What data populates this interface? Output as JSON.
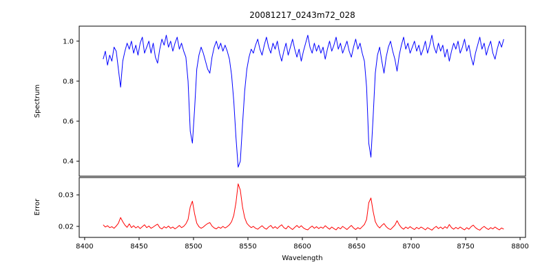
{
  "chart_data": {
    "type": "line",
    "title": "20081217_0243m72_028",
    "xlabel": "Wavelength",
    "grid": false,
    "legend": "none",
    "x_start": 8417,
    "x_step": 2,
    "xlim": [
      8395,
      8805
    ],
    "x_ticks": [
      8400,
      8450,
      8500,
      8550,
      8600,
      8650,
      8700,
      8750,
      8800
    ],
    "x_tick_labels": [
      "8400",
      "8450",
      "8500",
      "8550",
      "8600",
      "8650",
      "8700",
      "8750",
      "8800"
    ],
    "panels": [
      {
        "name": "spectrum",
        "ylabel": "Spectrum",
        "color": "#0000ff",
        "ylim": [
          0.325,
          1.075
        ],
        "y_ticks": [
          0.4,
          0.6,
          0.8,
          1.0
        ],
        "y_tick_labels": [
          "0.4",
          "0.6",
          "0.8",
          "1.0"
        ],
        "values": [
          0.91,
          0.95,
          0.88,
          0.93,
          0.9,
          0.97,
          0.95,
          0.86,
          0.77,
          0.9,
          0.95,
          0.99,
          0.96,
          1.0,
          0.94,
          0.98,
          0.93,
          0.99,
          1.02,
          0.94,
          0.97,
          1.0,
          0.94,
          0.99,
          0.92,
          0.89,
          0.96,
          1.01,
          0.98,
          1.03,
          0.97,
          1.0,
          0.95,
          0.99,
          1.02,
          0.96,
          0.99,
          0.95,
          0.92,
          0.8,
          0.55,
          0.49,
          0.66,
          0.86,
          0.93,
          0.97,
          0.94,
          0.9,
          0.86,
          0.84,
          0.92,
          0.97,
          1.0,
          0.96,
          0.99,
          0.95,
          0.98,
          0.95,
          0.91,
          0.83,
          0.7,
          0.52,
          0.37,
          0.4,
          0.58,
          0.75,
          0.86,
          0.92,
          0.96,
          0.94,
          0.98,
          1.01,
          0.96,
          0.93,
          0.98,
          1.02,
          0.97,
          0.94,
          0.99,
          0.96,
          1.0,
          0.94,
          0.9,
          0.95,
          0.99,
          0.93,
          0.97,
          1.01,
          0.96,
          0.92,
          0.96,
          0.9,
          0.95,
          0.99,
          1.03,
          0.97,
          0.94,
          0.99,
          0.95,
          0.98,
          0.94,
          0.97,
          0.91,
          0.96,
          1.0,
          0.95,
          0.98,
          1.02,
          0.96,
          0.99,
          0.94,
          0.97,
          1.0,
          0.95,
          0.92,
          0.97,
          1.01,
          0.96,
          0.99,
          0.94,
          0.9,
          0.77,
          0.49,
          0.42,
          0.62,
          0.84,
          0.93,
          0.97,
          0.9,
          0.84,
          0.92,
          0.97,
          1.0,
          0.95,
          0.91,
          0.85,
          0.93,
          0.98,
          1.02,
          0.96,
          0.99,
          0.94,
          0.97,
          1.0,
          0.95,
          0.98,
          0.93,
          0.96,
          1.0,
          0.94,
          0.98,
          1.03,
          0.97,
          0.94,
          0.99,
          0.95,
          0.98,
          0.92,
          0.96,
          0.9,
          0.95,
          0.99,
          0.96,
          1.0,
          0.94,
          0.97,
          1.01,
          0.95,
          0.98,
          0.92,
          0.88,
          0.94,
          0.98,
          1.02,
          0.96,
          0.99,
          0.93,
          0.97,
          1.0,
          0.94,
          0.91,
          0.96,
          1.0,
          0.97,
          1.01
        ]
      },
      {
        "name": "error",
        "ylabel": "Error",
        "color": "#ff0000",
        "ylim": [
          0.0165,
          0.0355
        ],
        "y_ticks": [
          0.02,
          0.03
        ],
        "y_tick_labels": [
          "0.02",
          "0.03"
        ],
        "values": [
          0.0205,
          0.0198,
          0.0202,
          0.0196,
          0.0199,
          0.0194,
          0.0201,
          0.021,
          0.0228,
          0.0215,
          0.0204,
          0.0197,
          0.0208,
          0.0196,
          0.0202,
          0.0195,
          0.02,
          0.0193,
          0.0199,
          0.0205,
          0.0196,
          0.0201,
          0.0194,
          0.0198,
          0.0203,
          0.0207,
          0.0196,
          0.0192,
          0.0199,
          0.0195,
          0.0201,
          0.0194,
          0.0198,
          0.0192,
          0.0197,
          0.0203,
          0.0196,
          0.02,
          0.0208,
          0.0222,
          0.0262,
          0.028,
          0.024,
          0.021,
          0.0199,
          0.0194,
          0.0198,
          0.0204,
          0.0209,
          0.0212,
          0.0201,
          0.0195,
          0.0192,
          0.0198,
          0.0194,
          0.02,
          0.0195,
          0.0199,
          0.0205,
          0.0215,
          0.0235,
          0.0275,
          0.0335,
          0.0315,
          0.0262,
          0.0228,
          0.021,
          0.0202,
          0.0196,
          0.02,
          0.0194,
          0.0191,
          0.0197,
          0.0202,
          0.0195,
          0.0191,
          0.0198,
          0.0203,
          0.0194,
          0.0199,
          0.0193,
          0.02,
          0.0205,
          0.0196,
          0.0192,
          0.0201,
          0.0195,
          0.019,
          0.0197,
          0.0203,
          0.0196,
          0.0202,
          0.0195,
          0.0191,
          0.0189,
          0.0196,
          0.0201,
          0.0194,
          0.0199,
          0.0193,
          0.0198,
          0.0194,
          0.0202,
          0.0196,
          0.0191,
          0.0198,
          0.0193,
          0.0189,
          0.0197,
          0.0192,
          0.02,
          0.0195,
          0.019,
          0.0197,
          0.0203,
          0.0195,
          0.019,
          0.0196,
          0.0192,
          0.0199,
          0.0206,
          0.0222,
          0.0275,
          0.029,
          0.0248,
          0.0215,
          0.0202,
          0.0195,
          0.0203,
          0.0209,
          0.0199,
          0.0193,
          0.019,
          0.0197,
          0.0204,
          0.0218,
          0.0205,
          0.0196,
          0.0191,
          0.0198,
          0.0193,
          0.0199,
          0.0194,
          0.019,
          0.0197,
          0.0192,
          0.0198,
          0.0194,
          0.0189,
          0.0196,
          0.0192,
          0.0188,
          0.0195,
          0.02,
          0.0193,
          0.0198,
          0.0192,
          0.0199,
          0.0194,
          0.0206,
          0.0196,
          0.0191,
          0.0197,
          0.0192,
          0.0198,
          0.0193,
          0.0189,
          0.0196,
          0.0191,
          0.0199,
          0.0204,
          0.0196,
          0.0191,
          0.0188,
          0.0195,
          0.02,
          0.0194,
          0.019,
          0.0196,
          0.0192,
          0.0198,
          0.0193,
          0.0189,
          0.0195,
          0.0191
        ]
      }
    ]
  }
}
